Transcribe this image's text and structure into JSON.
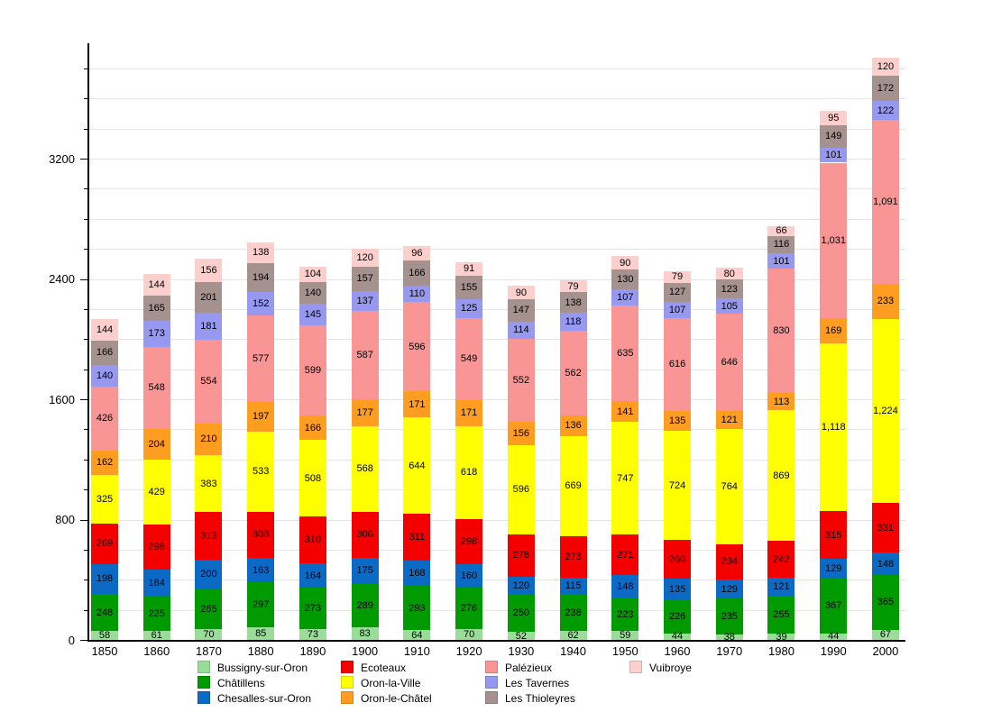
{
  "chart_data": {
    "type": "bar",
    "stacked": true,
    "title": "",
    "xlabel": "",
    "ylabel": "",
    "categories": [
      "1850",
      "1860",
      "1870",
      "1880",
      "1890",
      "1900",
      "1910",
      "1920",
      "1930",
      "1940",
      "1950",
      "1960",
      "1970",
      "1980",
      "1990",
      "2000"
    ],
    "series": [
      {
        "name": "Bussigny-sur-Oron",
        "color": "#99dd99",
        "values": [
          58,
          61,
          70,
          85,
          73,
          83,
          64,
          70,
          52,
          62,
          59,
          44,
          38,
          39,
          44,
          67
        ]
      },
      {
        "name": "Châtillens",
        "color": "#009b00",
        "values": [
          248,
          225,
          265,
          297,
          273,
          289,
          293,
          276,
          250,
          238,
          223,
          226,
          235,
          255,
          367,
          365
        ]
      },
      {
        "name": "Chesalles-sur-Oron",
        "color": "#0b6bc4",
        "values": [
          198,
          184,
          200,
          163,
          164,
          175,
          168,
          160,
          120,
          115,
          148,
          135,
          129,
          121,
          129,
          148
        ]
      },
      {
        "name": "Ecoteaux",
        "color": "#f50000",
        "values": [
          269,
          298,
          313,
          308,
          310,
          306,
          311,
          298,
          278,
          273,
          271,
          260,
          234,
          242,
          315,
          331
        ]
      },
      {
        "name": "Oron-la-Ville",
        "color": "#ffff00",
        "values": [
          325,
          429,
          383,
          533,
          508,
          568,
          644,
          618,
          596,
          669,
          747,
          724,
          764,
          869,
          1118,
          1224
        ]
      },
      {
        "name": "Oron-le-Châtel",
        "color": "#ff9d20",
        "values": [
          162,
          204,
          210,
          197,
          166,
          177,
          171,
          171,
          156,
          136,
          141,
          135,
          121,
          113,
          169,
          233
        ]
      },
      {
        "name": "Palézieux",
        "color": "#fa9595",
        "values": [
          426,
          548,
          554,
          577,
          599,
          587,
          596,
          549,
          552,
          562,
          635,
          616,
          646,
          830,
          1031,
          1091
        ]
      },
      {
        "name": "Les Tavernes",
        "color": "#9798ef",
        "values": [
          140,
          173,
          181,
          152,
          145,
          137,
          110,
          125,
          114,
          118,
          107,
          107,
          105,
          101,
          101,
          122
        ]
      },
      {
        "name": "Les Thioleyres",
        "color": "#a5928e",
        "values": [
          166,
          165,
          201,
          194,
          140,
          157,
          166,
          155,
          147,
          138,
          130,
          127,
          123,
          116,
          149,
          172
        ]
      },
      {
        "name": "Vuibroye",
        "color": "#fccfcc",
        "values": [
          144,
          144,
          156,
          138,
          104,
          120,
          96,
          91,
          90,
          79,
          90,
          79,
          80,
          66,
          95,
          120
        ]
      }
    ],
    "y_axis": {
      "labeled_ticks": [
        0,
        800,
        1600,
        2400,
        3200
      ],
      "minor_tick_step": 200,
      "grid_step": 200,
      "grid_max": 3800,
      "ylim": [
        0,
        3960
      ]
    },
    "grid": true,
    "legend_position": "bottom",
    "legend_columns": [
      [
        "Bussigny-sur-Oron",
        "Châtillens",
        "Chesalles-sur-Oron"
      ],
      [
        "Ecoteaux",
        "Oron-la-Ville",
        "Oron-le-Châtel"
      ],
      [
        "Palézieux",
        "Les Tavernes",
        "Les Thioleyres"
      ],
      [
        "Vuibroye"
      ]
    ]
  }
}
